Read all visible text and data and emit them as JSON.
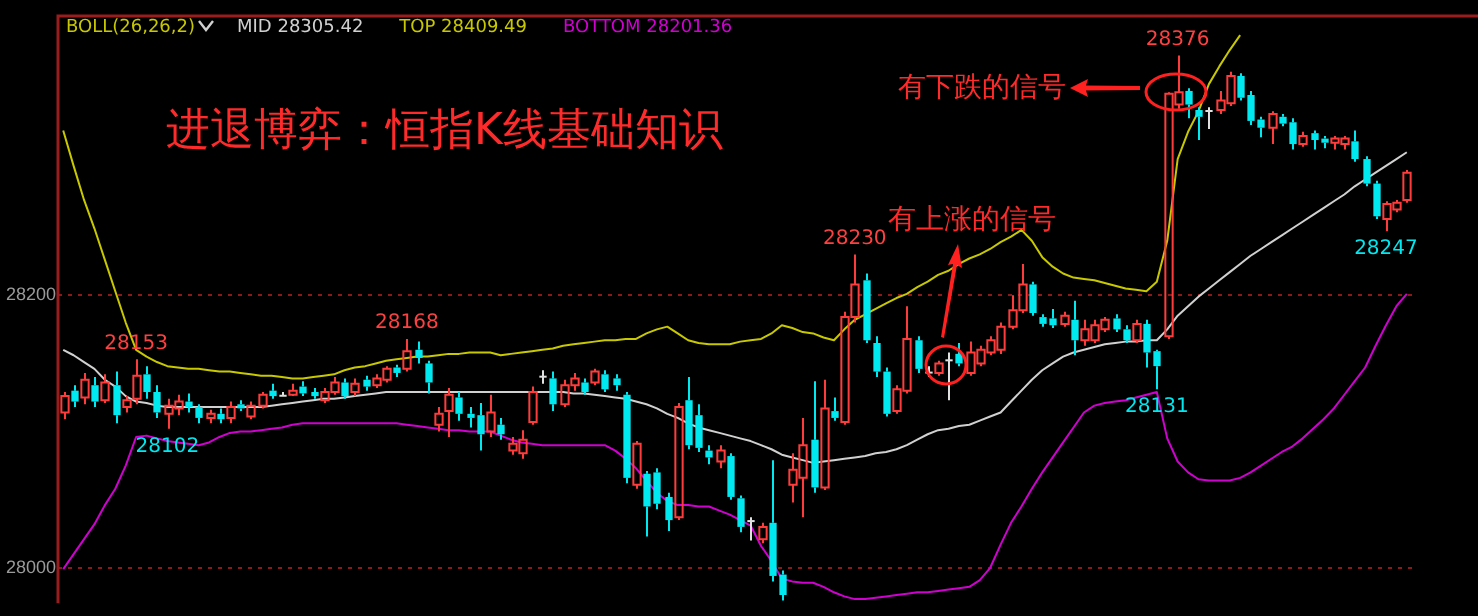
{
  "chart_data": {
    "type": "candlestick",
    "title": "进退博弈：恒指K线基础知识",
    "legend_title": "BOLL(26,26,2)",
    "legend": "top left",
    "grid": "y",
    "tick_labels": "y",
    "ylim": [
      27974,
      28405
    ],
    "yticks": [
      28000,
      28200
    ],
    "categories": [
      null,
      null,
      null,
      null,
      null,
      null,
      null,
      null,
      null,
      null,
      null,
      null,
      null,
      null,
      null,
      null,
      null,
      null,
      null,
      null,
      null,
      null,
      null,
      null,
      null,
      null,
      null,
      null,
      null,
      null,
      null,
      null,
      null,
      null,
      null,
      null,
      null,
      null,
      null,
      null,
      null,
      null,
      null,
      null,
      null,
      null,
      null,
      null,
      null,
      null,
      null,
      null,
      null,
      null,
      null,
      null,
      null,
      null,
      null,
      null,
      null,
      null,
      null,
      null,
      null,
      null,
      null,
      null,
      null,
      null,
      null,
      null,
      null,
      null,
      null,
      null,
      null,
      null,
      null,
      null,
      null,
      null,
      null,
      null,
      null,
      null,
      null,
      null,
      null,
      null,
      null,
      null,
      null,
      null,
      null,
      null,
      null,
      null,
      null,
      null,
      null,
      null,
      null,
      null,
      null,
      null,
      null,
      null,
      null,
      null,
      null,
      null,
      null,
      null,
      null,
      null,
      null,
      null,
      null,
      null,
      null,
      null,
      null,
      null,
      null,
      null,
      null,
      null,
      null,
      null
    ],
    "ohlc": [
      [
        28114,
        28129,
        28109,
        28126
      ],
      [
        28130,
        28134,
        28118,
        28122
      ],
      [
        28125,
        28143,
        28120,
        28138
      ],
      [
        28134,
        28140,
        28118,
        28122
      ],
      [
        28123,
        28142,
        28121,
        28136
      ],
      [
        28134,
        28144,
        28106,
        28112
      ],
      [
        28118,
        28126,
        28114,
        28123
      ],
      [
        28124,
        28153,
        28120,
        28141
      ],
      [
        28142,
        28148,
        28124,
        28129
      ],
      [
        28129,
        28134,
        28110,
        28114
      ],
      [
        28113,
        28124,
        28102,
        28119
      ],
      [
        28117,
        28127,
        28112,
        28122
      ],
      [
        28122,
        28128,
        28114,
        28118
      ],
      [
        28118,
        28120,
        28106,
        28110
      ],
      [
        28110,
        28116,
        28106,
        28113
      ],
      [
        28113,
        28117,
        28106,
        28109
      ],
      [
        28110,
        28122,
        28106,
        28118
      ],
      [
        28120,
        28123,
        28115,
        28117
      ],
      [
        28111,
        28122,
        28109,
        28119
      ],
      [
        28119,
        28129,
        28117,
        28127
      ],
      [
        28130,
        28135,
        28124,
        28126
      ],
      [
        28127,
        28129,
        28126,
        28127
      ],
      [
        28127,
        28135,
        28126,
        28130
      ],
      [
        28133,
        28137,
        28126,
        28128
      ],
      [
        28129,
        28132,
        28124,
        28126
      ],
      [
        28123,
        28132,
        28121,
        28129
      ],
      [
        28129,
        28140,
        28127,
        28136
      ],
      [
        28136,
        28139,
        28124,
        28126
      ],
      [
        28129,
        28139,
        28126,
        28135
      ],
      [
        28138,
        28141,
        28130,
        28133
      ],
      [
        28134,
        28142,
        28132,
        28139
      ],
      [
        28138,
        28148,
        28136,
        28146
      ],
      [
        28147,
        28149,
        28140,
        28143
      ],
      [
        28146,
        28168,
        28144,
        28159
      ],
      [
        28160,
        28166,
        28150,
        28154
      ],
      [
        28150,
        28152,
        28128,
        28136
      ],
      [
        28105,
        28118,
        28100,
        28113
      ],
      [
        28115,
        28132,
        28096,
        28127
      ],
      [
        28125,
        28129,
        28108,
        28113
      ],
      [
        28113,
        28118,
        28103,
        28110
      ],
      [
        28112,
        28121,
        28086,
        28098
      ],
      [
        28100,
        28127,
        28096,
        28114
      ],
      [
        28105,
        28110,
        28094,
        28098
      ],
      [
        28086,
        28096,
        28083,
        28091
      ],
      [
        28084,
        28101,
        28080,
        28094
      ],
      [
        28107,
        28133,
        28105,
        28129
      ],
      [
        28141,
        28145,
        28135,
        28141
      ],
      [
        28139,
        28144,
        28115,
        28120
      ],
      [
        28120,
        28138,
        28118,
        28134
      ],
      [
        28134,
        28143,
        28130,
        28139
      ],
      [
        28136,
        28139,
        28127,
        28129
      ],
      [
        28136,
        28146,
        28134,
        28144
      ],
      [
        28142,
        28145,
        28129,
        28131
      ],
      [
        28139,
        28142,
        28130,
        28134
      ],
      [
        28127,
        28129,
        28062,
        28066
      ],
      [
        28061,
        28093,
        28058,
        28091
      ],
      [
        28069,
        28071,
        28023,
        28045
      ],
      [
        28070,
        28073,
        28043,
        28047
      ],
      [
        28052,
        28055,
        28027,
        28035
      ],
      [
        28037,
        28121,
        28035,
        28118
      ],
      [
        28123,
        28140,
        28087,
        28090
      ],
      [
        28112,
        28120,
        28085,
        28088
      ],
      [
        28086,
        28090,
        28076,
        28081
      ],
      [
        28078,
        28090,
        28073,
        28086
      ],
      [
        28082,
        28084,
        28050,
        28052
      ],
      [
        28051,
        28053,
        28026,
        28030
      ],
      [
        28035,
        28037,
        28020,
        28035
      ],
      [
        28021,
        28033,
        28018,
        28030
      ],
      [
        28033,
        28079,
        27990,
        27994
      ],
      [
        27995,
        27998,
        27976,
        27980
      ],
      [
        28061,
        28084,
        28048,
        28072
      ],
      [
        28066,
        28110,
        28037,
        28090
      ],
      [
        28094,
        28137,
        28055,
        28059
      ],
      [
        28059,
        28138,
        28057,
        28117
      ],
      [
        28115,
        28125,
        28108,
        28110
      ],
      [
        28107,
        28188,
        28105,
        28184
      ],
      [
        28184,
        28230,
        28180,
        28208
      ],
      [
        28211,
        28216,
        28165,
        28167
      ],
      [
        28165,
        28170,
        28140,
        28144
      ],
      [
        28144,
        28147,
        28111,
        28113
      ],
      [
        28115,
        28134,
        28113,
        28131
      ],
      [
        28130,
        28192,
        28128,
        28168
      ],
      [
        28167,
        28170,
        28143,
        28146
      ],
      [
        28144,
        28148,
        28140,
        28144
      ],
      [
        28143,
        28152,
        28141,
        28150
      ],
      [
        28153,
        28158,
        28123,
        28153
      ],
      [
        28157,
        28165,
        28148,
        28150
      ],
      [
        28143,
        28166,
        28141,
        28158
      ],
      [
        28150,
        28163,
        28148,
        28160
      ],
      [
        28158,
        28170,
        28156,
        28167
      ],
      [
        28160,
        28180,
        28157,
        28177
      ],
      [
        28177,
        28200,
        28175,
        28189
      ],
      [
        28189,
        28223,
        28187,
        28208
      ],
      [
        28208,
        28210,
        28185,
        28187
      ],
      [
        28184,
        28186,
        28177,
        28179
      ],
      [
        28183,
        28190,
        28176,
        28178
      ],
      [
        28179,
        28188,
        28177,
        28185
      ],
      [
        28182,
        28196,
        28156,
        28167
      ],
      [
        28167,
        28182,
        28163,
        28175
      ],
      [
        28167,
        28182,
        28165,
        28178
      ],
      [
        28175,
        28184,
        28173,
        28182
      ],
      [
        28183,
        28186,
        28173,
        28175
      ],
      [
        28175,
        28178,
        28165,
        28167
      ],
      [
        28167,
        28182,
        28165,
        28179
      ],
      [
        28179,
        28182,
        28147,
        28158
      ],
      [
        28159,
        28160,
        28131,
        28148
      ],
      [
        28170,
        28349,
        28168,
        28348
      ],
      [
        28340,
        28376,
        28337,
        28349
      ],
      [
        28350,
        28352,
        28330,
        28340
      ],
      [
        28336,
        28338,
        28314,
        28331
      ],
      [
        28336,
        28338,
        28322,
        28336
      ],
      [
        28336,
        28350,
        28333,
        28343
      ],
      [
        28341,
        28364,
        28339,
        28361
      ],
      [
        28361,
        28363,
        28343,
        28345
      ],
      [
        28347,
        28350,
        28325,
        28328
      ],
      [
        28329,
        28331,
        28316,
        28323
      ],
      [
        28323,
        28335,
        28311,
        28333
      ],
      [
        28331,
        28333,
        28324,
        28326
      ],
      [
        28327,
        28330,
        28307,
        28311
      ],
      [
        28311,
        28320,
        28309,
        28317
      ],
      [
        28319,
        28321,
        28307,
        28314
      ],
      [
        28315,
        28317,
        28308,
        28312
      ],
      [
        28312,
        28317,
        28307,
        28315
      ],
      [
        28311,
        28317,
        28307,
        28315
      ],
      [
        28313,
        28321,
        28298,
        28300
      ],
      [
        28300,
        28302,
        28280,
        28282
      ],
      [
        28282,
        28284,
        28256,
        28258
      ],
      [
        28256,
        28269,
        28247,
        28267
      ],
      [
        28263,
        28270,
        28261,
        28268
      ],
      [
        28270,
        28292,
        28268,
        28290
      ]
    ],
    "colors": [
      "#ff3c3c",
      "#00e8f0",
      "#ff3c3c",
      "#00e8f0",
      "#ff3c3c",
      "#00e8f0",
      "#ff3c3c",
      "#ff3c3c",
      "#00e8f0",
      "#00e8f0",
      "#ff3c3c",
      "#ff3c3c",
      "#00e8f0",
      "#00e8f0",
      "#ff3c3c",
      "#00e8f0",
      "#ff3c3c",
      "#00e8f0",
      "#ff3c3c",
      "#ff3c3c",
      "#00e8f0",
      "#e0e0e0",
      "#ff3c3c",
      "#00e8f0",
      "#00e8f0",
      "#ff3c3c",
      "#ff3c3c",
      "#00e8f0",
      "#ff3c3c",
      "#00e8f0",
      "#ff3c3c",
      "#ff3c3c",
      "#00e8f0",
      "#ff3c3c",
      "#00e8f0",
      "#00e8f0",
      "#ff3c3c",
      "#ff3c3c",
      "#00e8f0",
      "#00e8f0",
      "#00e8f0",
      "#ff3c3c",
      "#00e8f0",
      "#ff3c3c",
      "#ff3c3c",
      "#ff3c3c",
      "#e0e0e0",
      "#00e8f0",
      "#ff3c3c",
      "#ff3c3c",
      "#00e8f0",
      "#ff3c3c",
      "#00e8f0",
      "#00e8f0",
      "#00e8f0",
      "#ff3c3c",
      "#00e8f0",
      "#00e8f0",
      "#00e8f0",
      "#ff3c3c",
      "#00e8f0",
      "#00e8f0",
      "#00e8f0",
      "#ff3c3c",
      "#00e8f0",
      "#00e8f0",
      "#e0e0e0",
      "#ff3c3c",
      "#00e8f0",
      "#00e8f0",
      "#ff3c3c",
      "#ff3c3c",
      "#00e8f0",
      "#ff3c3c",
      "#00e8f0",
      "#ff3c3c",
      "#ff3c3c",
      "#00e8f0",
      "#00e8f0",
      "#00e8f0",
      "#ff3c3c",
      "#ff3c3c",
      "#00e8f0",
      "#e0e0e0",
      "#ff3c3c",
      "#e0e0e0",
      "#00e8f0",
      "#ff3c3c",
      "#ff3c3c",
      "#ff3c3c",
      "#ff3c3c",
      "#ff3c3c",
      "#ff3c3c",
      "#00e8f0",
      "#00e8f0",
      "#00e8f0",
      "#ff3c3c",
      "#00e8f0",
      "#ff3c3c",
      "#ff3c3c",
      "#ff3c3c",
      "#00e8f0",
      "#00e8f0",
      "#ff3c3c",
      "#00e8f0",
      "#00e8f0",
      "#ff3c3c",
      "#ff3c3c",
      "#00e8f0",
      "#00e8f0",
      "#e0e0e0",
      "#ff3c3c",
      "#ff3c3c",
      "#00e8f0",
      "#00e8f0",
      "#00e8f0",
      "#ff3c3c",
      "#00e8f0",
      "#00e8f0",
      "#ff3c3c",
      "#00e8f0",
      "#00e8f0",
      "#ff3c3c",
      "#ff3c3c",
      "#00e8f0",
      "#00e8f0",
      "#00e8f0",
      "#ff3c3c",
      "#ff3c3c",
      "#ff3c3c"
    ],
    "series": [
      {
        "name": "MID 28305.42",
        "type": "line",
        "color": "#d0d0d0",
        "values": [
          28160,
          28156,
          28151,
          28146,
          28138,
          28133,
          28126,
          28122,
          28121,
          28119,
          28118,
          28118,
          28118,
          28118,
          28118,
          28118,
          28118,
          28118,
          28118,
          28118,
          28119,
          28120,
          28121,
          28122,
          28123,
          28124,
          28124,
          28125,
          28126,
          28127,
          28128,
          28129,
          28129,
          28129,
          28129,
          28129,
          28129,
          28129,
          28129,
          28129,
          28129,
          28129,
          28129,
          28129,
          28129,
          28129,
          28129,
          28129,
          28129,
          28128,
          28128,
          28127,
          28126,
          28125,
          28124,
          28122,
          28120,
          28117,
          28113,
          28110,
          28106,
          28103,
          28101,
          28099,
          28097,
          28095,
          28093,
          28090,
          28087,
          28083,
          28081,
          28079,
          28077,
          28078,
          28079,
          28080,
          28081,
          28082,
          28084,
          28085,
          28087,
          28090,
          28094,
          28098,
          28101,
          28102,
          28104,
          28105,
          28108,
          28111,
          28114,
          28122,
          28130,
          28138,
          28145,
          28150,
          28155,
          28158,
          28160,
          28162,
          28164,
          28165,
          28166,
          28166,
          28167,
          28167,
          28175,
          28185,
          28192,
          28199,
          28205,
          28211,
          28217,
          28223,
          28229,
          28234,
          28239,
          28244,
          28249,
          28254,
          28259,
          28264,
          28269,
          28274,
          28280,
          28285,
          28290,
          28295,
          28300,
          28305
        ]
      },
      {
        "name": "TOP 28409.49",
        "type": "line",
        "color": "#c8c800",
        "values": [
          28321,
          28295,
          28270,
          28249,
          28226,
          28203,
          28180,
          28160,
          28155,
          28151,
          28148,
          28147,
          28146,
          28146,
          28145,
          28144,
          28144,
          28143,
          28142,
          28141,
          28141,
          28140,
          28139,
          28139,
          28140,
          28141,
          28142,
          28145,
          28147,
          28148,
          28150,
          28152,
          28153,
          28154,
          28155,
          28155,
          28156,
          28157,
          28157,
          28158,
          28158,
          28158,
          28156,
          28157,
          28158,
          28159,
          28160,
          28161,
          28163,
          28164,
          28165,
          28166,
          28167,
          28167,
          28168,
          28168,
          28172,
          28175,
          28177,
          28172,
          28167,
          28165,
          28164,
          28164,
          28164,
          28166,
          28167,
          28168,
          28172,
          28178,
          28176,
          28173,
          28172,
          28169,
          28167,
          28175,
          28182,
          28186,
          28190,
          28194,
          28198,
          28201,
          28206,
          28210,
          28215,
          28218,
          28223,
          28227,
          28230,
          28234,
          28239,
          28243,
          28248,
          28240,
          28228,
          28221,
          28216,
          28213,
          28212,
          28211,
          28209,
          28207,
          28205,
          28204,
          28203,
          28210,
          28240,
          28300,
          28320,
          28335,
          28355,
          28368,
          28380,
          28391,
          null,
          null,
          null,
          null,
          null,
          null,
          null,
          null,
          null,
          null,
          null,
          null,
          null,
          null,
          null,
          null
        ]
      },
      {
        "name": "BOTTOM 28201.36",
        "type": "line",
        "color": "#d000d0",
        "values": [
          27999,
          28010,
          28021,
          28032,
          28046,
          28058,
          28075,
          28096,
          28097,
          28095,
          28093,
          28092,
          28091,
          28090,
          28092,
          28096,
          28099,
          28100,
          28100,
          28101,
          28102,
          28103,
          28105,
          28106,
          28106,
          28106,
          28106,
          28106,
          28106,
          28106,
          28106,
          28106,
          28106,
          28105,
          28104,
          28103,
          28102,
          28101,
          28101,
          28100,
          28100,
          28100,
          28097,
          28094,
          28092,
          28091,
          28090,
          28090,
          28090,
          28090,
          28090,
          28090,
          28090,
          28086,
          28080,
          28073,
          28064,
          28055,
          28049,
          28046,
          28046,
          28045,
          28045,
          28042,
          28039,
          28035,
          28031,
          28016,
          28005,
          27992,
          27990,
          27989,
          27989,
          27986,
          27982,
          27979,
          27977,
          27977,
          27978,
          27979,
          27980,
          27981,
          27982,
          27982,
          27983,
          27984,
          27985,
          27986,
          27991,
          28000,
          28017,
          28033,
          28045,
          28058,
          28070,
          28081,
          28092,
          28103,
          28114,
          28119,
          28121,
          28122,
          28123,
          28125,
          28127,
          28129,
          28095,
          28078,
          28070,
          28065,
          28064,
          28064,
          28064,
          28066,
          28070,
          28075,
          28080,
          28085,
          28089,
          28095,
          28102,
          28109,
          28117,
          28127,
          28137,
          28147,
          28163,
          28178,
          28192,
          28201
        ]
      }
    ],
    "annotations": [
      "有下跌的信号",
      "有上涨的信号",
      {
        "text": "28153",
        "y": 28153
      },
      {
        "text": "28102",
        "y": 28102
      },
      {
        "text": "28168",
        "y": 28168
      },
      {
        "text": "28230",
        "y": 28230
      },
      {
        "text": "28376",
        "y": 28376
      },
      {
        "text": "28131",
        "y": 28131
      },
      {
        "text": "28247",
        "y": 28247
      }
    ]
  }
}
